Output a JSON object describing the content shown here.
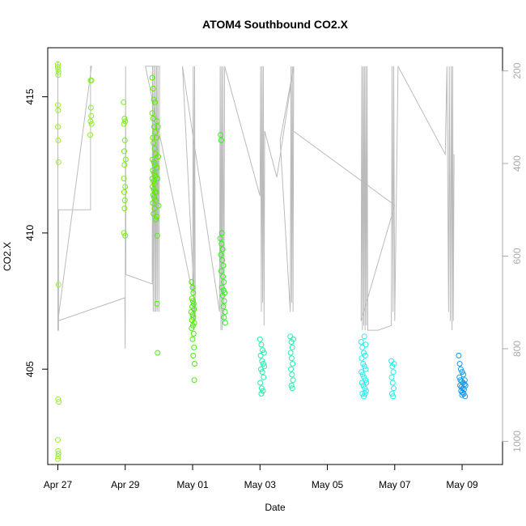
{
  "chart_data": {
    "type": "scatter",
    "title": "ATOM4 Southbound CO2.X",
    "xlabel": "Date",
    "ylabel": "CO2.X",
    "x_ticks": [
      "Apr 27",
      "Apr 29",
      "May 01",
      "May 03",
      "May 05",
      "May 07",
      "May 09"
    ],
    "x_tick_days": [
      0,
      2,
      4,
      6,
      8,
      10,
      12
    ],
    "xlim_days": [
      -0.3,
      13.2
    ],
    "ylim": [
      401.5,
      416.8
    ],
    "y_ticks": [
      405,
      410,
      415
    ],
    "right_axis": {
      "ticks": [
        200,
        400,
        600,
        800,
        1000
      ],
      "lim": [
        1050,
        150
      ],
      "color": "#aaaaaa",
      "series": "pressure profile (grey line)"
    },
    "marker": "open-circle",
    "clusters": [
      {
        "color": "#99ee33",
        "points": [
          [
            0.0,
            416.2
          ],
          [
            0.0,
            416.1
          ],
          [
            0.01,
            416.0
          ],
          [
            0.02,
            415.9
          ],
          [
            0.01,
            415.8
          ],
          [
            0.0,
            414.7
          ],
          [
            0.01,
            414.5
          ],
          [
            0.0,
            413.9
          ],
          [
            0.01,
            413.4
          ],
          [
            0.02,
            412.6
          ],
          [
            0.02,
            408.1
          ],
          [
            0.01,
            403.9
          ],
          [
            0.03,
            403.8
          ],
          [
            0.0,
            402.4
          ],
          [
            0.01,
            402.0
          ],
          [
            0.02,
            401.9
          ],
          [
            0.01,
            401.8
          ],
          [
            0.0,
            401.7
          ]
        ]
      },
      {
        "color": "#88ee22",
        "points": [
          [
            0.97,
            415.6
          ],
          [
            1.0,
            415.6
          ],
          [
            0.98,
            414.6
          ],
          [
            0.99,
            414.3
          ],
          [
            0.97,
            414.1
          ],
          [
            0.96,
            413.6
          ],
          [
            1.0,
            414.0
          ]
        ]
      },
      {
        "color": "#77ee11",
        "points": [
          [
            1.95,
            414.8
          ],
          [
            1.98,
            414.2
          ],
          [
            2.0,
            414.1
          ],
          [
            1.96,
            414.0
          ],
          [
            1.99,
            413.4
          ],
          [
            1.97,
            413.0
          ],
          [
            2.01,
            412.7
          ],
          [
            1.98,
            412.5
          ],
          [
            1.96,
            412.0
          ],
          [
            2.0,
            411.7
          ],
          [
            1.97,
            411.5
          ],
          [
            1.99,
            411.2
          ],
          [
            1.98,
            410.9
          ],
          [
            1.96,
            410.0
          ],
          [
            2.0,
            409.9
          ]
        ]
      },
      {
        "color": "#55ee00",
        "points": [
          [
            2.8,
            415.7
          ],
          [
            2.83,
            415.3
          ],
          [
            2.85,
            414.9
          ],
          [
            2.88,
            414.8
          ],
          [
            2.8,
            414.4
          ],
          [
            2.83,
            414.2
          ],
          [
            2.86,
            413.9
          ],
          [
            2.89,
            413.7
          ],
          [
            2.82,
            413.5
          ],
          [
            2.84,
            413.3
          ],
          [
            2.87,
            413.1
          ],
          [
            2.9,
            412.9
          ],
          [
            2.81,
            412.7
          ],
          [
            2.85,
            412.6
          ],
          [
            2.88,
            412.5
          ],
          [
            2.82,
            412.3
          ],
          [
            2.86,
            412.2
          ],
          [
            2.89,
            412.1
          ],
          [
            2.8,
            412.0
          ],
          [
            2.84,
            411.9
          ],
          [
            2.87,
            411.8
          ],
          [
            2.81,
            411.7
          ],
          [
            2.85,
            411.6
          ],
          [
            2.88,
            411.5
          ],
          [
            2.83,
            411.4
          ],
          [
            2.86,
            411.3
          ],
          [
            2.9,
            411.2
          ],
          [
            2.82,
            411.1
          ],
          [
            2.87,
            410.9
          ],
          [
            2.84,
            410.7
          ],
          [
            2.91,
            410.5
          ],
          [
            2.95,
            414.1
          ],
          [
            2.97,
            413.9
          ],
          [
            2.93,
            413.5
          ],
          [
            2.98,
            412.8
          ],
          [
            2.94,
            412.4
          ],
          [
            2.96,
            412.0
          ],
          [
            2.92,
            411.5
          ],
          [
            2.99,
            411.0
          ],
          [
            2.93,
            410.6
          ],
          [
            2.95,
            409.9
          ],
          [
            2.94,
            407.4
          ],
          [
            2.96,
            405.6
          ]
        ]
      },
      {
        "color": "#44ee00",
        "points": [
          [
            3.97,
            408.2
          ],
          [
            4.0,
            408.0
          ],
          [
            4.02,
            407.8
          ],
          [
            3.98,
            407.6
          ],
          [
            4.01,
            407.5
          ],
          [
            4.03,
            407.4
          ],
          [
            3.99,
            407.3
          ],
          [
            4.04,
            407.2
          ],
          [
            3.96,
            407.1
          ],
          [
            4.0,
            407.0
          ],
          [
            4.02,
            406.9
          ],
          [
            3.98,
            406.8
          ],
          [
            4.05,
            406.7
          ],
          [
            4.01,
            406.6
          ],
          [
            3.97,
            406.5
          ],
          [
            4.03,
            406.3
          ],
          [
            4.0,
            406.1
          ],
          [
            4.04,
            405.8
          ],
          [
            4.02,
            405.5
          ],
          [
            4.06,
            405.2
          ],
          [
            4.05,
            404.6
          ]
        ]
      },
      {
        "color": "#33ee22",
        "points": [
          [
            4.83,
            413.6
          ],
          [
            4.85,
            413.4
          ],
          [
            4.87,
            410.0
          ],
          [
            4.82,
            409.8
          ],
          [
            4.86,
            409.6
          ],
          [
            4.89,
            409.4
          ],
          [
            4.84,
            409.2
          ],
          [
            4.88,
            409.0
          ],
          [
            4.91,
            408.8
          ],
          [
            4.85,
            408.6
          ],
          [
            4.9,
            408.4
          ],
          [
            4.93,
            408.2
          ],
          [
            4.87,
            408.0
          ],
          [
            4.92,
            407.9
          ],
          [
            4.95,
            407.8
          ],
          [
            4.89,
            407.7
          ],
          [
            4.94,
            407.5
          ],
          [
            4.91,
            407.3
          ],
          [
            4.96,
            407.1
          ],
          [
            4.93,
            406.9
          ],
          [
            4.97,
            406.7
          ]
        ]
      },
      {
        "color": "#22eeaa",
        "points": [
          [
            6.0,
            406.1
          ],
          [
            6.04,
            405.9
          ],
          [
            6.08,
            405.7
          ],
          [
            6.02,
            405.5
          ],
          [
            6.06,
            405.3
          ],
          [
            6.1,
            405.2
          ],
          [
            6.03,
            405.0
          ],
          [
            6.07,
            404.9
          ],
          [
            6.11,
            404.7
          ],
          [
            6.01,
            404.5
          ],
          [
            6.05,
            404.3
          ],
          [
            6.09,
            404.2
          ],
          [
            6.04,
            404.1
          ],
          [
            6.12,
            405.6
          ],
          [
            6.13,
            405.1
          ]
        ]
      },
      {
        "color": "#22eeaa",
        "points": [
          [
            6.9,
            406.2
          ],
          [
            6.93,
            406.0
          ],
          [
            6.96,
            405.8
          ],
          [
            6.91,
            405.6
          ],
          [
            6.94,
            405.4
          ],
          [
            6.97,
            405.2
          ],
          [
            6.92,
            405.0
          ],
          [
            6.95,
            404.8
          ],
          [
            6.98,
            404.6
          ],
          [
            6.93,
            404.4
          ],
          [
            6.96,
            404.3
          ],
          [
            6.99,
            406.1
          ]
        ]
      },
      {
        "color": "#22eeee",
        "points": [
          [
            9.0,
            406.0
          ],
          [
            9.04,
            405.8
          ],
          [
            9.08,
            405.6
          ],
          [
            9.12,
            405.5
          ],
          [
            9.02,
            405.4
          ],
          [
            9.06,
            405.2
          ],
          [
            9.1,
            405.1
          ],
          [
            9.14,
            405.0
          ],
          [
            9.01,
            404.9
          ],
          [
            9.05,
            404.8
          ],
          [
            9.09,
            404.7
          ],
          [
            9.13,
            404.6
          ],
          [
            9.03,
            404.5
          ],
          [
            9.07,
            404.4
          ],
          [
            9.11,
            404.3
          ],
          [
            9.15,
            404.2
          ],
          [
            9.04,
            404.1
          ],
          [
            9.08,
            404.0
          ],
          [
            9.12,
            404.1
          ],
          [
            9.16,
            404.5
          ],
          [
            9.1,
            406.2
          ],
          [
            9.14,
            405.9
          ]
        ]
      },
      {
        "color": "#22eeee",
        "points": [
          [
            9.9,
            405.3
          ],
          [
            9.93,
            405.1
          ],
          [
            9.96,
            404.9
          ],
          [
            9.91,
            404.7
          ],
          [
            9.94,
            404.5
          ],
          [
            9.97,
            404.3
          ],
          [
            9.92,
            404.1
          ],
          [
            9.95,
            404.0
          ],
          [
            9.98,
            405.2
          ]
        ]
      },
      {
        "color": "#1199ee",
        "points": [
          [
            11.9,
            405.5
          ],
          [
            11.93,
            405.2
          ],
          [
            11.96,
            405.0
          ],
          [
            12.0,
            404.9
          ],
          [
            12.04,
            404.8
          ],
          [
            11.92,
            404.7
          ],
          [
            11.95,
            404.6
          ],
          [
            11.99,
            404.55
          ],
          [
            12.03,
            404.5
          ],
          [
            12.07,
            404.45
          ],
          [
            11.94,
            404.4
          ],
          [
            11.98,
            404.35
          ],
          [
            12.02,
            404.3
          ],
          [
            12.06,
            404.25
          ],
          [
            11.97,
            404.2
          ],
          [
            12.01,
            404.15
          ],
          [
            12.05,
            404.1
          ],
          [
            12.09,
            404.0
          ],
          [
            12.0,
            404.05
          ],
          [
            12.08,
            404.6
          ],
          [
            12.1,
            404.4
          ]
        ]
      }
    ],
    "pressure_profile": [
      [
        0.0,
        180
      ],
      [
        0.0,
        760
      ],
      [
        0.02,
        760
      ],
      [
        0.02,
        500
      ],
      [
        0.97,
        500
      ],
      [
        0.97,
        190
      ],
      [
        1.0,
        190
      ],
      [
        0.0,
        740
      ],
      [
        1.99,
        690
      ],
      [
        2.0,
        800
      ],
      [
        2.01,
        190
      ],
      [
        2.02,
        640
      ],
      [
        2.8,
        660
      ],
      [
        2.81,
        190
      ],
      [
        2.83,
        720
      ],
      [
        2.85,
        190
      ],
      [
        2.87,
        720
      ],
      [
        2.89,
        190
      ],
      [
        2.91,
        720
      ],
      [
        2.93,
        190
      ],
      [
        2.95,
        720
      ],
      [
        2.97,
        190
      ],
      [
        3.0,
        720
      ],
      [
        3.02,
        190
      ],
      [
        2.6,
        190
      ],
      [
        4.0,
        680
      ],
      [
        4.02,
        190
      ],
      [
        4.04,
        760
      ],
      [
        4.06,
        190
      ],
      [
        4.08,
        740
      ],
      [
        3.7,
        190
      ],
      [
        4.8,
        720
      ],
      [
        4.82,
        190
      ],
      [
        4.84,
        760
      ],
      [
        4.86,
        190
      ],
      [
        4.88,
        760
      ],
      [
        4.9,
        190
      ],
      [
        4.93,
        740
      ],
      [
        4.95,
        190
      ],
      [
        6.0,
        470
      ],
      [
        6.02,
        190
      ],
      [
        6.04,
        720
      ],
      [
        6.06,
        190
      ],
      [
        6.08,
        700
      ],
      [
        6.1,
        190
      ],
      [
        6.12,
        750
      ],
      [
        6.14,
        330
      ],
      [
        6.5,
        430
      ],
      [
        7.0,
        190
      ],
      [
        6.6,
        350
      ],
      [
        6.9,
        720
      ],
      [
        6.92,
        190
      ],
      [
        6.94,
        700
      ],
      [
        6.96,
        190
      ],
      [
        6.98,
        720
      ],
      [
        7.0,
        190
      ],
      [
        6.99,
        330
      ],
      [
        10.0,
        490
      ],
      [
        9.0,
        740
      ],
      [
        9.02,
        190
      ],
      [
        9.04,
        760
      ],
      [
        9.06,
        190
      ],
      [
        9.08,
        750
      ],
      [
        9.1,
        190
      ],
      [
        9.12,
        760
      ],
      [
        9.14,
        190
      ],
      [
        9.16,
        750
      ],
      [
        9.18,
        190
      ],
      [
        9.2,
        760
      ],
      [
        9.5,
        760
      ],
      [
        9.9,
        750
      ],
      [
        9.92,
        190
      ],
      [
        9.95,
        720
      ],
      [
        9.97,
        190
      ],
      [
        10.0,
        740
      ],
      [
        10.1,
        190
      ],
      [
        11.5,
        380
      ],
      [
        11.55,
        190
      ],
      [
        11.6,
        720
      ],
      [
        11.62,
        190
      ],
      [
        11.65,
        740
      ],
      [
        11.68,
        190
      ],
      [
        11.7,
        760
      ],
      [
        11.72,
        190
      ],
      [
        11.74,
        740
      ],
      [
        11.76,
        380
      ]
    ]
  }
}
